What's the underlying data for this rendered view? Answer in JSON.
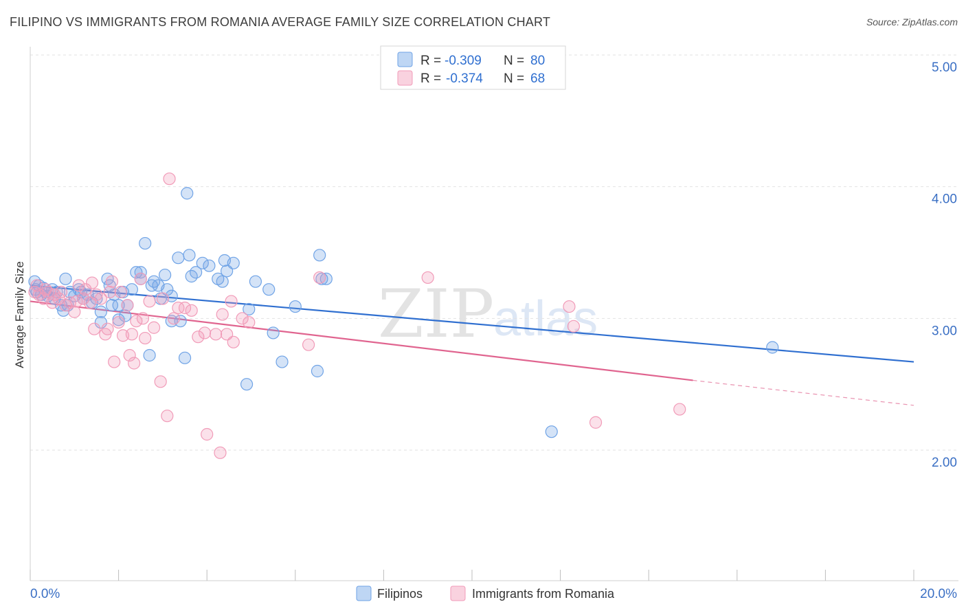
{
  "header": {
    "title": "FILIPINO VS IMMIGRANTS FROM ROMANIA AVERAGE FAMILY SIZE CORRELATION CHART",
    "source": "Source: ZipAtlas.com"
  },
  "watermark": {
    "zip": "ZIP",
    "atlas": "atlas"
  },
  "legend": {
    "rows": [
      {
        "r_label": "R =",
        "r_value": "-0.309",
        "n_label": "N =",
        "n_value": "80",
        "color": "#6fa3e6"
      },
      {
        "r_label": "R =",
        "r_value": "-0.374",
        "n_label": "N =",
        "n_value": "68",
        "color": "#f19bb8"
      }
    ]
  },
  "bottom_legend": {
    "items": [
      {
        "label": "Filipinos",
        "color": "#6fa3e6"
      },
      {
        "label": "Immigrants from Romania",
        "color": "#f19bb8"
      }
    ]
  },
  "chart_data": {
    "type": "scatter",
    "title": "FILIPINO VS IMMIGRANTS FROM ROMANIA AVERAGE FAMILY SIZE CORRELATION CHART",
    "xlabel": "",
    "ylabel": "Average Family Size",
    "xlim": [
      0.0,
      20.0
    ],
    "ylim": [
      1.0,
      5.2
    ],
    "x_tick_labels": [
      "0.0%",
      "20.0%"
    ],
    "y_ticks": [
      2.0,
      3.0,
      4.0,
      5.0
    ],
    "y_tick_labels": [
      "2.00",
      "3.00",
      "4.00",
      "5.00"
    ],
    "grid": true,
    "legend_position": "top-center",
    "series": [
      {
        "name": "Filipinos",
        "color": "#6fa3e6",
        "line_color": "#2f6fd0",
        "trend": {
          "x": [
            0.0,
            20.0
          ],
          "y": [
            3.25,
            2.67
          ]
        },
        "points": [
          [
            0.1,
            3.28
          ],
          [
            0.12,
            3.22
          ],
          [
            0.15,
            3.2
          ],
          [
            0.2,
            3.25
          ],
          [
            0.25,
            3.18
          ],
          [
            0.3,
            3.23
          ],
          [
            0.35,
            3.2
          ],
          [
            0.4,
            3.17
          ],
          [
            0.5,
            3.22
          ],
          [
            0.55,
            3.15
          ],
          [
            0.6,
            3.2
          ],
          [
            0.7,
            3.1
          ],
          [
            0.75,
            3.06
          ],
          [
            0.8,
            3.3
          ],
          [
            0.85,
            3.1
          ],
          [
            0.9,
            3.2
          ],
          [
            1.0,
            3.17
          ],
          [
            1.1,
            3.22
          ],
          [
            1.15,
            3.2
          ],
          [
            1.2,
            3.15
          ],
          [
            1.3,
            3.18
          ],
          [
            1.4,
            3.12
          ],
          [
            1.5,
            3.15
          ],
          [
            1.6,
            3.05
          ],
          [
            1.6,
            2.97
          ],
          [
            1.75,
            3.3
          ],
          [
            1.8,
            3.25
          ],
          [
            1.85,
            3.1
          ],
          [
            1.9,
            3.18
          ],
          [
            2.0,
            3.1
          ],
          [
            2.0,
            2.99
          ],
          [
            2.1,
            3.2
          ],
          [
            2.15,
            3.02
          ],
          [
            2.2,
            3.1
          ],
          [
            2.3,
            3.22
          ],
          [
            2.4,
            3.35
          ],
          [
            2.5,
            3.35
          ],
          [
            2.5,
            3.3
          ],
          [
            2.6,
            3.57
          ],
          [
            2.7,
            2.72
          ],
          [
            2.75,
            3.25
          ],
          [
            2.8,
            3.28
          ],
          [
            2.9,
            3.25
          ],
          [
            2.95,
            3.15
          ],
          [
            3.05,
            3.33
          ],
          [
            3.1,
            3.22
          ],
          [
            3.2,
            3.17
          ],
          [
            3.2,
            2.98
          ],
          [
            3.35,
            3.46
          ],
          [
            3.4,
            2.98
          ],
          [
            3.5,
            2.7
          ],
          [
            3.55,
            3.95
          ],
          [
            3.6,
            3.48
          ],
          [
            3.65,
            3.32
          ],
          [
            3.75,
            3.35
          ],
          [
            3.9,
            3.42
          ],
          [
            4.05,
            3.4
          ],
          [
            4.25,
            3.3
          ],
          [
            4.35,
            3.28
          ],
          [
            4.4,
            3.44
          ],
          [
            4.45,
            3.36
          ],
          [
            4.6,
            3.42
          ],
          [
            4.9,
            2.5
          ],
          [
            4.95,
            3.07
          ],
          [
            5.1,
            3.28
          ],
          [
            5.4,
            3.22
          ],
          [
            5.5,
            2.89
          ],
          [
            5.7,
            2.67
          ],
          [
            6.0,
            3.09
          ],
          [
            6.5,
            2.6
          ],
          [
            6.55,
            3.48
          ],
          [
            6.6,
            3.3
          ],
          [
            6.7,
            3.3
          ],
          [
            11.8,
            2.14
          ],
          [
            16.8,
            2.78
          ]
        ]
      },
      {
        "name": "Immigrants from Romania",
        "color": "#f19bb8",
        "line_color": "#e0648f",
        "trend": {
          "x": [
            0.0,
            15.0
          ],
          "y": [
            3.13,
            2.53
          ]
        },
        "trend_dashed": {
          "x": [
            15.0,
            20.0
          ],
          "y": [
            2.53,
            2.34
          ]
        },
        "points": [
          [
            0.1,
            3.2
          ],
          [
            0.15,
            3.25
          ],
          [
            0.2,
            3.18
          ],
          [
            0.3,
            3.15
          ],
          [
            0.35,
            3.22
          ],
          [
            0.4,
            3.2
          ],
          [
            0.5,
            3.12
          ],
          [
            0.55,
            3.18
          ],
          [
            0.65,
            3.15
          ],
          [
            0.7,
            3.2
          ],
          [
            0.8,
            3.1
          ],
          [
            0.9,
            3.12
          ],
          [
            1.0,
            3.05
          ],
          [
            1.05,
            3.13
          ],
          [
            1.1,
            3.25
          ],
          [
            1.2,
            3.15
          ],
          [
            1.25,
            3.22
          ],
          [
            1.35,
            3.12
          ],
          [
            1.4,
            3.27
          ],
          [
            1.45,
            2.92
          ],
          [
            1.5,
            3.18
          ],
          [
            1.6,
            3.15
          ],
          [
            1.7,
            2.88
          ],
          [
            1.75,
            2.92
          ],
          [
            1.8,
            3.2
          ],
          [
            1.85,
            3.28
          ],
          [
            1.9,
            2.67
          ],
          [
            2.0,
            2.97
          ],
          [
            2.05,
            3.2
          ],
          [
            2.1,
            2.87
          ],
          [
            2.2,
            3.1
          ],
          [
            2.25,
            2.72
          ],
          [
            2.3,
            2.88
          ],
          [
            2.35,
            2.66
          ],
          [
            2.4,
            2.98
          ],
          [
            2.5,
            3.3
          ],
          [
            2.55,
            3.0
          ],
          [
            2.6,
            2.85
          ],
          [
            2.7,
            3.13
          ],
          [
            2.8,
            2.93
          ],
          [
            2.95,
            2.52
          ],
          [
            3.0,
            3.15
          ],
          [
            3.1,
            2.26
          ],
          [
            3.15,
            4.06
          ],
          [
            3.25,
            3.0
          ],
          [
            3.35,
            3.08
          ],
          [
            3.5,
            3.08
          ],
          [
            3.65,
            3.06
          ],
          [
            3.8,
            2.86
          ],
          [
            3.95,
            2.89
          ],
          [
            4.0,
            2.12
          ],
          [
            4.2,
            2.88
          ],
          [
            4.3,
            1.98
          ],
          [
            4.35,
            3.03
          ],
          [
            4.45,
            2.88
          ],
          [
            4.55,
            3.13
          ],
          [
            4.6,
            2.82
          ],
          [
            4.8,
            3.0
          ],
          [
            4.95,
            2.97
          ],
          [
            6.3,
            2.8
          ],
          [
            6.55,
            3.31
          ],
          [
            9.0,
            3.31
          ],
          [
            12.2,
            3.09
          ],
          [
            12.3,
            2.94
          ],
          [
            12.8,
            2.21
          ],
          [
            14.7,
            2.31
          ]
        ]
      }
    ]
  }
}
